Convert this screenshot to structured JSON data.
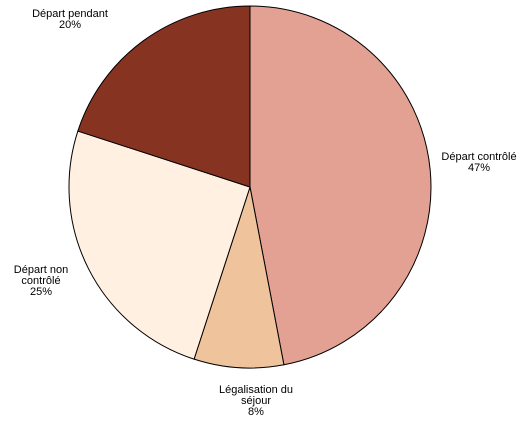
{
  "chart_data": {
    "type": "pie",
    "title": "",
    "slices": [
      {
        "label_lines": [
          "Départ contrôlé"
        ],
        "percent_label": "47%",
        "value": 47,
        "color": "#e3a193"
      },
      {
        "label_lines": [
          "Légalisation du",
          "séjour"
        ],
        "percent_label": "8%",
        "value": 8,
        "color": "#efc39b"
      },
      {
        "label_lines": [
          "Départ non",
          "contrôlé"
        ],
        "percent_label": "25%",
        "value": 25,
        "color": "#fff0e2"
      },
      {
        "label_lines": [
          "Départ pendant"
        ],
        "percent_label": "20%",
        "value": 20,
        "color": "#863322"
      }
    ],
    "start": "top",
    "direction": "clockwise",
    "legend": "none"
  }
}
